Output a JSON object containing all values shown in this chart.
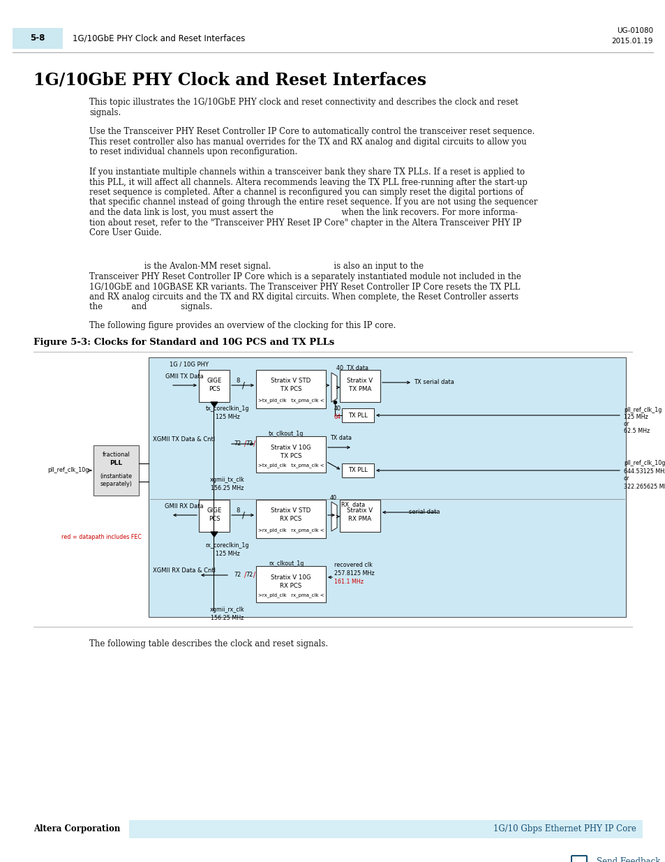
{
  "page_header_num": "5-8",
  "page_header_text": "1G/10GbE PHY Clock and Reset Interfaces",
  "page_header_right1": "UG-01080",
  "page_header_right2": "2015.01.19",
  "title": "1G/10GbE PHY Clock and Reset Interfaces",
  "para1": "This topic illustrates the 1G/10GbE PHY clock and reset connectivity and describes the clock and reset\nsignals.",
  "para2": "Use the Transceiver PHY Reset Controller IP Core to automatically control the transceiver reset sequence.\nThis reset controller also has manual overrides for the TX and RX analog and digital circuits to allow you\nto reset individual channels upon reconfiguration.",
  "para3": "If you instantiate multiple channels within a transceiver bank they share TX PLLs. If a reset is applied to\nthis PLL, it will affect all channels. Altera recommends leaving the TX PLL free-running after the start-up\nreset sequence is completed. After a channel is reconfigured you can simply reset the digital portions of\nthat specific channel instead of going through the entire reset sequence. If you are not using the sequencer\nand the data link is lost, you must assert the                          when the link recovers. For more informa-\ntion about reset, refer to the \"Transceiver PHY Reset IP Core\" chapter in the Altera Transceiver PHY IP\nCore User Guide.",
  "para4_line1": "                     is the Avalon-MM reset signal.                        is also an input to the",
  "para4_rest": "Transceiver PHY Reset Controller IP Core which is a separately instantiated module not included in the\n1G/10GbE and 10GBASE KR variants. The Transceiver PHY Reset Controller IP Core resets the TX PLL\nand RX analog circuits and the TX and RX digital circuits. When complete, the Reset Controller asserts\nthe           and             signals.",
  "para5": "The following figure provides an overview of the clocking for this IP core.",
  "fig_caption": "Figure 5-3: Clocks for Standard and 10G PCS and TX PLLs",
  "fig_bottom_text": "The following table describes the clock and reset signals.",
  "footer_left": "Altera Corporation",
  "footer_right": "1G/10 Gbps Ethernet PHY IP Core",
  "footer_feedback": "Send Feedback",
  "bg_color": "#ffffff",
  "header_tab_color": "#cce8f0",
  "diagram_bg": "#cce8f4",
  "diagram_border": "#888888",
  "red_color": "#cc0000",
  "blue_color": "#1a5276",
  "light_blue_footer": "#d6eef5",
  "text_color": "#1a1a1a"
}
